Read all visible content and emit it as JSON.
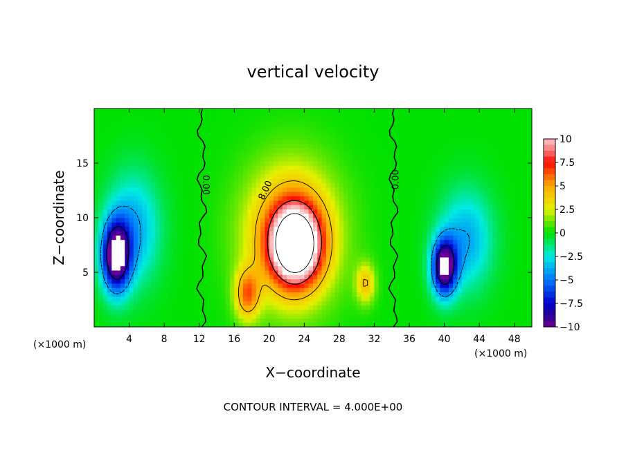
{
  "chart_data": {
    "type": "heatmap",
    "title": "vertical velocity",
    "xlabel": "X−coordinate",
    "ylabel": "Z−coordinate",
    "x_unit_left": "(×1000 m)",
    "x_unit_right": "(×1000 m)",
    "footer": "CONTOUR INTERVAL = 4.000E+00",
    "xlim": [
      0,
      50
    ],
    "ylim": [
      0,
      20
    ],
    "xticks": [
      4,
      8,
      12,
      16,
      20,
      24,
      28,
      32,
      36,
      40,
      44,
      48
    ],
    "yticks": [
      5,
      10,
      15
    ],
    "colorbar": {
      "range": [
        -10,
        10
      ],
      "ticks": [
        10,
        7.5,
        5,
        2.5,
        0,
        -2.5,
        -5,
        -7.5,
        -10
      ],
      "tick_labels": [
        "10",
        "7.5",
        "5",
        "2.5",
        "0",
        "−2.5",
        "−5",
        "−7.5",
        "−10"
      ]
    },
    "contour_labels": [
      "0.00",
      "8.00",
      "0.00"
    ],
    "features": [
      {
        "x": 2.5,
        "z": 6.5,
        "value": -11,
        "sx": 1.6,
        "sz": 3.2
      },
      {
        "x": 4.5,
        "z": 9,
        "value": -4,
        "sx": 3,
        "sz": 5
      },
      {
        "x": 40,
        "z": 5.5,
        "value": -10.5,
        "sx": 1.4,
        "sz": 2.6
      },
      {
        "x": 42.5,
        "z": 8,
        "value": -4,
        "sx": 3,
        "sz": 4.5
      },
      {
        "x": 23,
        "z": 7.5,
        "value": 13,
        "sx": 2.8,
        "sz": 3.5
      },
      {
        "x": 22.5,
        "z": 8.5,
        "value": 6,
        "sx": 5.2,
        "sz": 6.2
      },
      {
        "x": 17.5,
        "z": 3,
        "value": 5.5,
        "sx": 1.4,
        "sz": 2.3
      },
      {
        "x": 31,
        "z": 4,
        "value": 4,
        "sx": 1.1,
        "sz": 1.8
      }
    ]
  }
}
